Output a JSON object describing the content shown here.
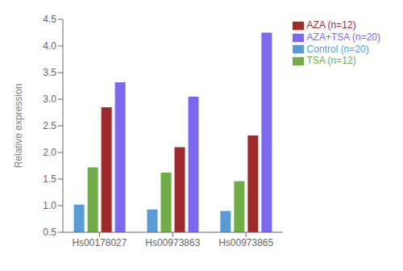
{
  "chart_data": {
    "type": "bar",
    "categories": [
      "Hs00178027",
      "Hs00973863",
      "Hs00973865"
    ],
    "series": [
      {
        "name": "Control (n=20)",
        "color": "#5B9BD5",
        "values": [
          1.02,
          0.93,
          0.9
        ]
      },
      {
        "name": "TSA (n=12)",
        "color": "#70AD47",
        "values": [
          1.72,
          1.62,
          1.46
        ]
      },
      {
        "name": "AZA (n=12)",
        "color": "#9E2A2B",
        "values": [
          2.85,
          2.1,
          2.32
        ]
      },
      {
        "name": "AZA+TSA (n=20)",
        "color": "#7B68EE",
        "values": [
          3.32,
          3.05,
          4.25
        ]
      }
    ],
    "ylabel": "Relative expression",
    "ylim": [
      0.5,
      4.5
    ],
    "yticks": [
      0.5,
      {
        "value": 1,
        "label": "1.0"
      },
      1.5,
      {
        "value": 2,
        "label": "2.0"
      },
      2.5,
      {
        "value": 3,
        "label": "3.0"
      },
      3.5,
      {
        "value": 4,
        "label": "4.0"
      },
      4.5
    ],
    "grid": false,
    "legend": "right"
  }
}
